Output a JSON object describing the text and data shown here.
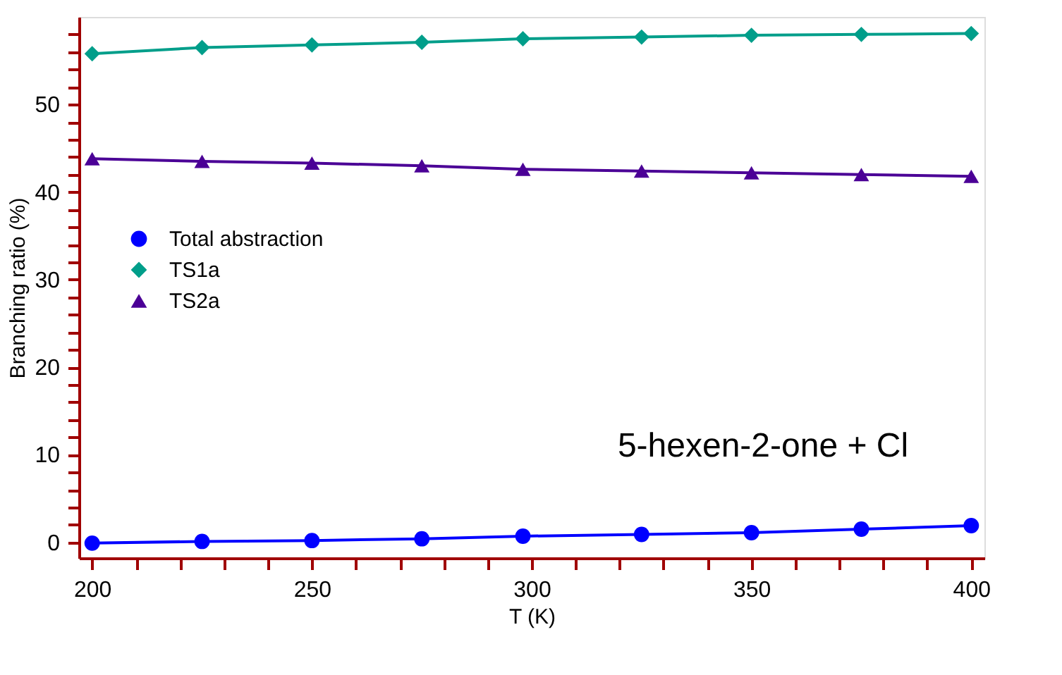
{
  "chart_data": {
    "type": "line",
    "xlabel": "T (K)",
    "ylabel": "Branching ratio (%)",
    "x": [
      200,
      225,
      250,
      275,
      298,
      325,
      350,
      375,
      400
    ],
    "series": [
      {
        "name": "Total abstraction",
        "color": "#0000ff",
        "marker": "circle",
        "values": [
          -0.1,
          0.1,
          0.2,
          0.4,
          0.7,
          0.9,
          1.1,
          1.5,
          1.9
        ]
      },
      {
        "name": "TS1a",
        "color": "#009e8a",
        "marker": "diamond",
        "values": [
          55.8,
          56.5,
          56.8,
          57.1,
          57.5,
          57.7,
          57.9,
          58.0,
          58.1
        ]
      },
      {
        "name": "TS2a",
        "color": "#4b0096",
        "marker": "triangle",
        "values": [
          43.8,
          43.5,
          43.3,
          43.0,
          42.6,
          42.4,
          42.2,
          42.0,
          41.8
        ]
      }
    ],
    "xlim": [
      197,
      403
    ],
    "ylim": [
      -1.8,
      60
    ],
    "xticks": [
      200,
      {
        "value": 210,
        "label": null
      },
      {
        "value": 220,
        "label": null
      },
      {
        "value": 230,
        "label": null
      },
      {
        "value": 240,
        "label": null
      },
      250,
      {
        "value": 260,
        "label": null
      },
      {
        "value": 270,
        "label": null
      },
      {
        "value": 280,
        "label": null
      },
      {
        "value": 290,
        "label": null
      },
      300,
      {
        "value": 310,
        "label": null
      },
      {
        "value": 320,
        "label": null
      },
      {
        "value": 330,
        "label": null
      },
      {
        "value": 340,
        "label": null
      },
      350,
      {
        "value": 360,
        "label": null
      },
      {
        "value": 370,
        "label": null
      },
      {
        "value": 380,
        "label": null
      },
      {
        "value": 390,
        "label": null
      },
      400
    ],
    "yticks": [
      0,
      {
        "value": 2,
        "label": null
      },
      {
        "value": 4,
        "label": null
      },
      {
        "value": 6,
        "label": null
      },
      {
        "value": 8,
        "label": null
      },
      10,
      {
        "value": 12,
        "label": null
      },
      {
        "value": 14,
        "label": null
      },
      {
        "value": 16,
        "label": null
      },
      {
        "value": 18,
        "label": null
      },
      20,
      {
        "value": 22,
        "label": null
      },
      {
        "value": 24,
        "label": null
      },
      {
        "value": 26,
        "label": null
      },
      {
        "value": 28,
        "label": null
      },
      30,
      {
        "value": 32,
        "label": null
      },
      {
        "value": 34,
        "label": null
      },
      {
        "value": 36,
        "label": null
      },
      {
        "value": 38,
        "label": null
      },
      40,
      {
        "value": 42,
        "label": null
      },
      {
        "value": 44,
        "label": null
      },
      {
        "value": 46,
        "label": null
      },
      {
        "value": 48,
        "label": null
      },
      50,
      {
        "value": 52,
        "label": null
      },
      {
        "value": 54,
        "label": null
      },
      {
        "value": 56,
        "label": null
      },
      {
        "value": 58,
        "label": null
      }
    ],
    "annotations": [
      "5-hexen-2-one + Cl"
    ],
    "legend": "top left",
    "grid": false,
    "line_style": "solid"
  }
}
